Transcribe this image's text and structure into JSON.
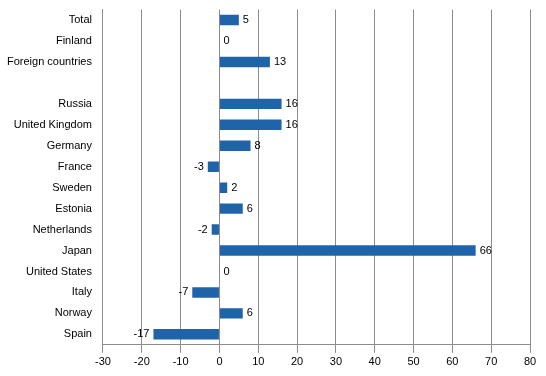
{
  "chart_data": {
    "type": "bar",
    "orientation": "horizontal",
    "categories": [
      "Total",
      "Finland",
      "Foreign countries",
      null,
      "Russia",
      "United Kingdom",
      "Germany",
      "France",
      "Sweden",
      "Estonia",
      "Netherlands",
      "Japan",
      "United States",
      "Italy",
      "Norway",
      "Spain"
    ],
    "values": [
      5,
      0,
      13,
      null,
      16,
      16,
      8,
      -3,
      2,
      6,
      -2,
      66,
      0,
      -7,
      6,
      -17
    ],
    "color": "#1f63a8",
    "xlim": [
      -30,
      80
    ],
    "xticks": [
      -30,
      -20,
      -10,
      0,
      10,
      20,
      30,
      40,
      50,
      60,
      70,
      80
    ],
    "grid": true,
    "data_labels": true
  }
}
